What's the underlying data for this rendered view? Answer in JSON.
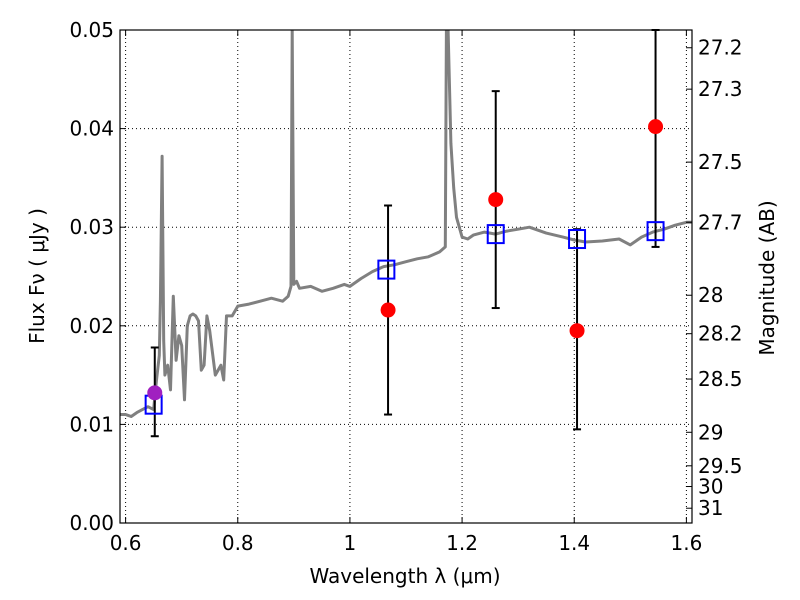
{
  "chart_data": {
    "type": "scatter",
    "xlabel": "Wavelength  λ (μm)",
    "ylabel": "Flux  Fν  ( μJy )",
    "y2label": "Magnitude (AB)",
    "xlim": [
      0.59,
      1.61
    ],
    "ylim": [
      0.0,
      0.05
    ],
    "grid": true,
    "xticks": [
      0.6,
      0.8,
      1.0,
      1.2,
      1.4,
      1.6
    ],
    "xtick_labels": [
      "0.6",
      "0.8",
      "1",
      "1.2",
      "1.4",
      "1.6"
    ],
    "yticks": [
      0.0,
      0.01,
      0.02,
      0.03,
      0.04,
      0.05
    ],
    "ytick_labels": [
      "0.00",
      "0.01",
      "0.02",
      "0.03",
      "0.04",
      "0.05"
    ],
    "y2ticks": [
      {
        "label": "27.2",
        "flux": 0.0482
      },
      {
        "label": "27.3",
        "flux": 0.044
      },
      {
        "label": "27.5",
        "flux": 0.0366
      },
      {
        "label": "27.7",
        "flux": 0.0305
      },
      {
        "label": "28",
        "flux": 0.0231
      },
      {
        "label": "28.2",
        "flux": 0.0192
      },
      {
        "label": "28.5",
        "flux": 0.0146
      },
      {
        "label": "29",
        "flux": 0.0092
      },
      {
        "label": "29.5",
        "flux": 0.0058
      },
      {
        "label": "30",
        "flux": 0.0037
      },
      {
        "label": "31",
        "flux": 0.0015
      }
    ],
    "colors": {
      "spectrum": "#808080",
      "model_box": "#0000ff",
      "observed": "#ff0000",
      "observed_first": "#a020c0",
      "errorbar": "#000000",
      "grid": "#000000"
    },
    "series": [
      {
        "type": "line",
        "x": [
          0.59,
          0.6,
          0.61,
          0.62,
          0.63,
          0.64,
          0.65,
          0.655,
          0.66,
          0.662,
          0.665,
          0.668,
          0.67,
          0.675,
          0.68,
          0.685,
          0.69,
          0.695,
          0.7,
          0.705,
          0.71,
          0.715,
          0.72,
          0.725,
          0.73,
          0.735,
          0.74,
          0.745,
          0.75,
          0.76,
          0.77,
          0.775,
          0.78,
          0.79,
          0.8,
          0.82,
          0.84,
          0.86,
          0.88,
          0.89,
          0.895,
          0.897,
          0.9,
          0.905,
          0.91,
          0.93,
          0.95,
          0.97,
          0.99,
          1.0,
          1.02,
          1.04,
          1.06,
          1.08,
          1.1,
          1.12,
          1.14,
          1.16,
          1.17,
          1.172,
          1.175,
          1.18,
          1.185,
          1.19,
          1.2,
          1.21,
          1.22,
          1.24,
          1.26,
          1.28,
          1.3,
          1.32,
          1.35,
          1.38,
          1.4,
          1.42,
          1.45,
          1.48,
          1.5,
          1.52,
          1.54,
          1.56,
          1.58,
          1.6,
          1.61
        ],
        "y": [
          0.011,
          0.011,
          0.0108,
          0.0112,
          0.0115,
          0.0118,
          0.0115,
          0.0145,
          0.017,
          0.0225,
          0.0372,
          0.0185,
          0.015,
          0.016,
          0.0135,
          0.023,
          0.0165,
          0.019,
          0.018,
          0.0125,
          0.02,
          0.021,
          0.0212,
          0.021,
          0.0205,
          0.0155,
          0.016,
          0.021,
          0.0195,
          0.015,
          0.016,
          0.0145,
          0.021,
          0.021,
          0.022,
          0.0222,
          0.0225,
          0.0228,
          0.0225,
          0.023,
          0.024,
          0.05,
          0.0242,
          0.0245,
          0.0238,
          0.024,
          0.0235,
          0.0238,
          0.0242,
          0.024,
          0.0248,
          0.0255,
          0.026,
          0.0262,
          0.0265,
          0.0268,
          0.027,
          0.0275,
          0.028,
          0.05,
          0.05,
          0.0385,
          0.034,
          0.031,
          0.029,
          0.0288,
          0.0292,
          0.0295,
          0.0293,
          0.0296,
          0.0298,
          0.03,
          0.0294,
          0.029,
          0.0287,
          0.0285,
          0.0286,
          0.0288,
          0.0282,
          0.029,
          0.0295,
          0.0298,
          0.0302,
          0.0305,
          0.0305
        ]
      },
      {
        "type": "scatter",
        "marker": "open-square",
        "x": [
          0.65,
          1.065,
          1.26,
          1.405,
          1.545
        ],
        "y": [
          0.012,
          0.0257,
          0.0293,
          0.0288,
          0.0296
        ]
      },
      {
        "type": "scatter",
        "marker": "filled-circle",
        "x": [
          0.652,
          1.068,
          1.26,
          1.405,
          1.545
        ],
        "y": [
          0.0132,
          0.0216,
          0.0328,
          0.0195,
          0.0402
        ],
        "yerr_low": [
          0.0088,
          0.011,
          0.0218,
          0.0095,
          0.028
        ],
        "yerr_high": [
          0.0178,
          0.0322,
          0.0438,
          0.0298,
          0.05
        ]
      }
    ]
  }
}
